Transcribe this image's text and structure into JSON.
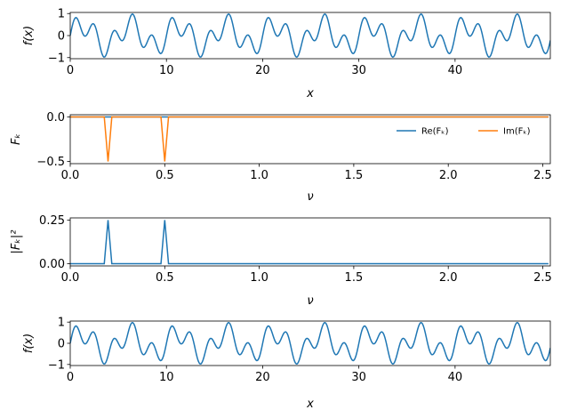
{
  "chart_data": [
    {
      "type": "line",
      "series": [
        {
          "name": "f(x)",
          "color": "#1f77b4",
          "function": "0.5*sin(2*pi*0.2*x) + 0.5*sin(2*pi*0.5*x)",
          "samples": 500
        }
      ],
      "xlim": [
        0,
        49.9
      ],
      "ylim": [
        -1.05,
        1.05
      ],
      "xticks": [
        0,
        10,
        20,
        30,
        40
      ],
      "xticklabels": [
        "0",
        "10",
        "20",
        "30",
        "40"
      ],
      "yticks": [
        1,
        0,
        -1
      ],
      "yticklabels": [
        "1",
        "0",
        "−1"
      ],
      "xlabel": "x",
      "ylabel": "f(x)"
    },
    {
      "type": "line",
      "series": [
        {
          "name": "Re(Fk)",
          "color": "#1f77b4",
          "x": [
            0,
            2.53
          ],
          "y": [
            0,
            0
          ]
        },
        {
          "name": "Im(Fk)",
          "color": "#ff7f0e",
          "x": [
            0,
            0.18,
            0.2,
            0.22,
            0.48,
            0.5,
            0.52,
            2.53
          ],
          "y": [
            0,
            0,
            -0.5,
            0,
            0,
            -0.5,
            0,
            0
          ]
        }
      ],
      "legend": {
        "entries": [
          "Re(Fₖ)",
          "Im(Fₖ)"
        ],
        "loc": "center-right",
        "ncol": 2
      },
      "xlim": [
        0,
        2.54
      ],
      "ylim": [
        -0.525,
        0.025
      ],
      "xticks": [
        0,
        0.5,
        1,
        1.5,
        2,
        2.5
      ],
      "xticklabels": [
        "0.0",
        "0.5",
        "1.0",
        "1.5",
        "2.0",
        "2.5"
      ],
      "yticks": [
        0,
        -0.5
      ],
      "yticklabels": [
        "0.0",
        "−0.5"
      ],
      "xlabel": "ν",
      "ylabel": "Fₖ"
    },
    {
      "type": "line",
      "series": [
        {
          "name": "|Fk|^2",
          "color": "#1f77b4",
          "x": [
            0,
            0.18,
            0.2,
            0.22,
            0.48,
            0.5,
            0.52,
            2.53
          ],
          "y": [
            0,
            0,
            0.25,
            0,
            0,
            0.25,
            0,
            0
          ]
        }
      ],
      "xlim": [
        0,
        2.54
      ],
      "ylim": [
        -0.0125,
        0.2625
      ],
      "xticks": [
        0,
        0.5,
        1,
        1.5,
        2,
        2.5
      ],
      "xticklabels": [
        "0.0",
        "0.5",
        "1.0",
        "1.5",
        "2.0",
        "2.5"
      ],
      "yticks": [
        0.25,
        0
      ],
      "yticklabels": [
        "0.25",
        "0.00"
      ],
      "xlabel": "ν",
      "ylabel": "|Fₖ|²"
    },
    {
      "type": "line",
      "series": [
        {
          "name": "f(x)",
          "color": "#1f77b4",
          "function": "0.5*sin(2*pi*0.2*x) + 0.5*sin(2*pi*0.5*x)",
          "samples": 500
        }
      ],
      "xlim": [
        0,
        49.9
      ],
      "ylim": [
        -1.05,
        1.05
      ],
      "xticks": [
        0,
        10,
        20,
        30,
        40
      ],
      "xticklabels": [
        "0",
        "10",
        "20",
        "30",
        "40"
      ],
      "yticks": [
        1,
        0,
        -1
      ],
      "yticklabels": [
        "1",
        "0",
        "−1"
      ],
      "xlabel": "x",
      "ylabel": "f(x)"
    }
  ]
}
